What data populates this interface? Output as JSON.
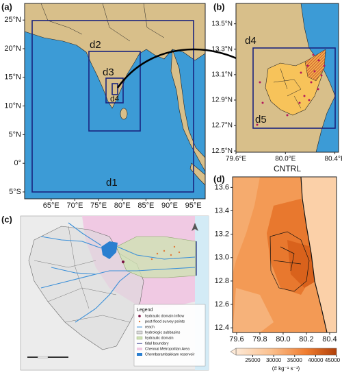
{
  "panels": {
    "a": {
      "label": "(a)",
      "xlim": [
        59.4,
        97.5
      ],
      "ylim": [
        -6.2,
        27.9
      ],
      "lon_ticks": [
        {
          "value": 65,
          "label": "65°E"
        },
        {
          "value": 70,
          "label": "70°E"
        },
        {
          "value": 75,
          "label": "75°E"
        },
        {
          "value": 80,
          "label": "80°E"
        },
        {
          "value": 85,
          "label": "85°E"
        },
        {
          "value": 90,
          "label": "90°E"
        },
        {
          "value": 95,
          "label": "95°E"
        }
      ],
      "lat_ticks": [
        {
          "value": 25,
          "label": "25°N"
        },
        {
          "value": 20,
          "label": "20°N"
        },
        {
          "value": 15,
          "label": "15°N"
        },
        {
          "value": 10,
          "label": "10°N"
        },
        {
          "value": 5,
          "label": "5°N"
        },
        {
          "value": 0,
          "label": "0°"
        },
        {
          "value": -5,
          "label": "5°S"
        }
      ],
      "domains": [
        "d1",
        "d2",
        "d3",
        "d4"
      ]
    },
    "b": {
      "label": "(b)",
      "xlim": [
        79.6,
        80.43
      ],
      "ylim": [
        12.49,
        13.66
      ],
      "lon_ticks": [
        {
          "value": 79.6,
          "label": "79.6°E"
        },
        {
          "value": 80.0,
          "label": "80.0°E"
        },
        {
          "value": 80.4,
          "label": "80.4°E"
        }
      ],
      "lat_ticks": [
        {
          "value": 13.5,
          "label": "13.5°N"
        },
        {
          "value": 13.3,
          "label": "13.3°N"
        },
        {
          "value": 13.1,
          "label": "13.1°N"
        },
        {
          "value": 12.9,
          "label": "12.9°N"
        },
        {
          "value": 12.7,
          "label": "12.7°N"
        },
        {
          "value": 12.5,
          "label": "12.5°N"
        }
      ],
      "domains": [
        "d4",
        "d5"
      ]
    },
    "c": {
      "label": "(c)",
      "legend": {
        "title": "Legend",
        "items": [
          "hydraulic domain inflow",
          "post-flood survey points",
          "reach",
          "hydrologic subbasins",
          "hydraulic domain",
          "tidal boundary",
          "Chennai Metropolitan Area",
          "Chembarambakkam reservoir"
        ]
      }
    },
    "d": {
      "label": "(d)",
      "title": "CNTRL",
      "xlim": [
        79.565,
        80.459
      ],
      "ylim": [
        12.36,
        13.69
      ],
      "xticks": [
        79.6,
        79.8,
        {
          "value": 80.0,
          "label": "80.0"
        },
        80.2,
        80.4
      ],
      "yticks": [
        13.6,
        13.4,
        13.2,
        {
          "value": 13.0,
          "label": "13.0"
        },
        12.8,
        12.6,
        12.4
      ],
      "colorbar": {
        "lim": [
          21000,
          45000
        ],
        "ticks": [
          25000,
          30000,
          35000,
          40000,
          45000
        ],
        "label": "(# kg⁻¹ s⁻¹)"
      }
    }
  }
}
